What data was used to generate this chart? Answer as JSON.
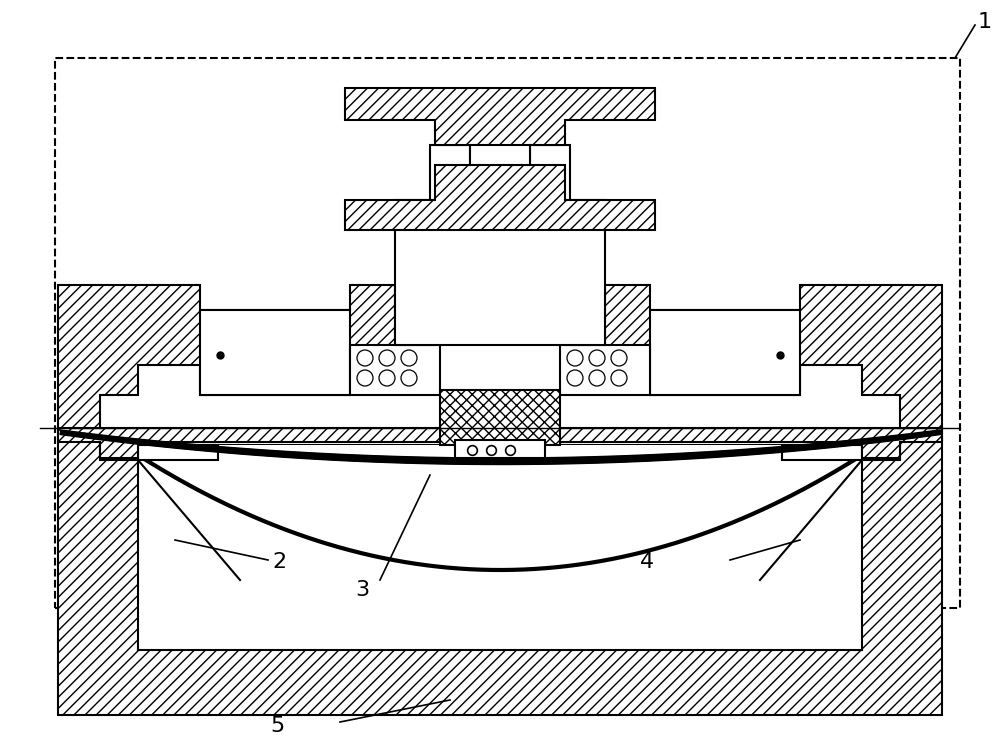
{
  "bg_color": "#ffffff",
  "lw": 1.5,
  "lw_thick": 4.0,
  "lw_dashed": 1.5,
  "hatch_diag": "///",
  "hatch_cross": "xxx",
  "label_fontsize": 16
}
